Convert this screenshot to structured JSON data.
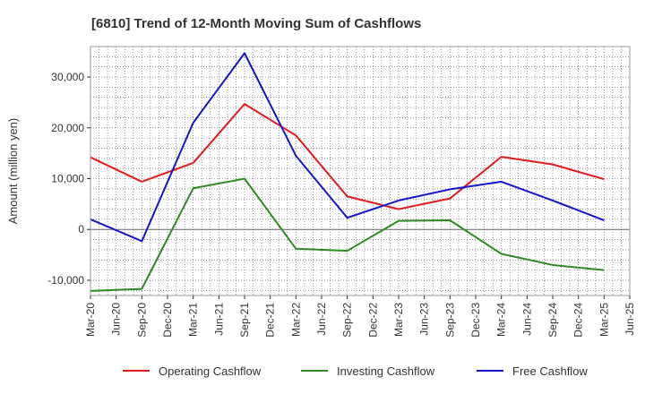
{
  "chart_data": {
    "type": "line",
    "title": "[6810]  Trend of 12-Month Moving Sum of Cashflows",
    "xlabel": "",
    "ylabel": "Amount (million yen)",
    "x_ticks": [
      "Mar-20",
      "Jun-20",
      "Sep-20",
      "Dec-20",
      "Mar-21",
      "Jun-21",
      "Sep-21",
      "Dec-21",
      "Mar-22",
      "Jun-22",
      "Sep-22",
      "Dec-22",
      "Mar-23",
      "Jun-23",
      "Sep-23",
      "Dec-23",
      "Mar-24",
      "Jun-24",
      "Sep-24",
      "Dec-24",
      "Mar-25",
      "Jun-25"
    ],
    "y_ticks": [
      -10000,
      0,
      10000,
      20000,
      30000
    ],
    "y_tick_labels": [
      "-10,000",
      "0",
      "10,000",
      "20,000",
      "30,000"
    ],
    "ylim": [
      -13000,
      36000
    ],
    "grid": true,
    "legend_position": "bottom",
    "series": [
      {
        "name": "Operating Cashflow",
        "color": "#e41a1c",
        "x": [
          "Mar-20",
          "Sep-20",
          "Mar-21",
          "Sep-21",
          "Mar-22",
          "Sep-22",
          "Mar-23",
          "Sep-23",
          "Mar-24",
          "Sep-24",
          "Mar-25"
        ],
        "values": [
          14200,
          9400,
          13100,
          24700,
          18500,
          6500,
          4000,
          6100,
          14300,
          12800,
          9900
        ]
      },
      {
        "name": "Investing Cashflow",
        "color": "#2e8b23",
        "x": [
          "Mar-20",
          "Sep-20",
          "Mar-21",
          "Sep-21",
          "Mar-22",
          "Sep-22",
          "Mar-23",
          "Sep-23",
          "Mar-24",
          "Sep-24",
          "Mar-25"
        ],
        "values": [
          -12100,
          -11700,
          8100,
          10000,
          -3800,
          -4200,
          1700,
          1800,
          -4800,
          -7000,
          -8000
        ]
      },
      {
        "name": "Free Cashflow",
        "color": "#1515cc",
        "x": [
          "Mar-20",
          "Sep-20",
          "Mar-21",
          "Sep-21",
          "Mar-22",
          "Sep-22",
          "Mar-23",
          "Sep-23",
          "Mar-24",
          "Sep-24",
          "Mar-25"
        ],
        "values": [
          2000,
          -2300,
          21000,
          34700,
          14500,
          2300,
          5700,
          7900,
          9400,
          5700,
          1800
        ]
      }
    ]
  }
}
